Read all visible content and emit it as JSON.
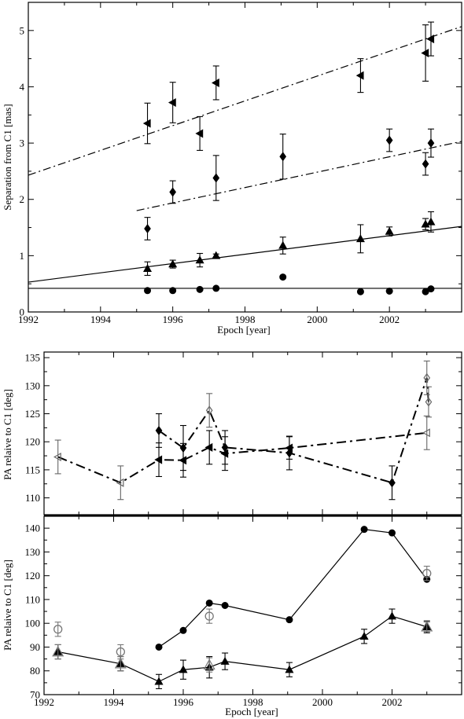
{
  "chart_data": [
    {
      "type": "scatter",
      "xlabel": "Epoch [year]",
      "ylabel": "Separation from C1 [mas]",
      "xlim": [
        1992,
        2004
      ],
      "ylim": [
        0,
        5.5
      ],
      "xticks": [
        "1992",
        "1994",
        "1996",
        "1998",
        "2000",
        "2002"
      ],
      "yticks": [
        "0",
        "1",
        "2",
        "3",
        "4",
        "5"
      ],
      "series": [
        {
          "marker": "triangle-left",
          "points": [
            {
              "x": 1995.3,
              "y": 3.35,
              "err": 0.36
            },
            {
              "x": 1996.0,
              "y": 3.72,
              "err": 0.36
            },
            {
              "x": 1996.75,
              "y": 3.17,
              "err": 0.3
            },
            {
              "x": 1997.2,
              "y": 4.07,
              "err": 0.3
            },
            {
              "x": 2001.2,
              "y": 4.2,
              "err": 0.3
            },
            {
              "x": 2003.0,
              "y": 4.6,
              "err": 0.5
            },
            {
              "x": 2003.15,
              "y": 4.85,
              "err": 0.3
            }
          ],
          "fit": {
            "style": "dash-dot",
            "x": [
              1992,
              2004
            ],
            "y": [
              2.43,
              5.07
            ]
          }
        },
        {
          "marker": "diamond",
          "points": [
            {
              "x": 1995.3,
              "y": 1.48,
              "err": 0.2
            },
            {
              "x": 1996.0,
              "y": 2.13,
              "err": 0.2
            },
            {
              "x": 1997.2,
              "y": 2.38,
              "err": 0.4
            },
            {
              "x": 1999.05,
              "y": 2.76,
              "err": 0.4
            },
            {
              "x": 2002.0,
              "y": 3.05,
              "err": 0.2
            },
            {
              "x": 2003.0,
              "y": 2.63,
              "err": 0.2
            },
            {
              "x": 2003.15,
              "y": 3.0,
              "err": 0.25
            }
          ],
          "fit": {
            "style": "dash-dot",
            "x": [
              1995,
              2004
            ],
            "y": [
              1.8,
              3.03
            ]
          }
        },
        {
          "marker": "triangle-up",
          "points": [
            {
              "x": 1995.3,
              "y": 0.77,
              "err": 0.12
            },
            {
              "x": 1996.0,
              "y": 0.85,
              "err": 0.07
            },
            {
              "x": 1996.75,
              "y": 0.92,
              "err": 0.12
            },
            {
              "x": 1997.2,
              "y": 1.0,
              "err": 0.03
            },
            {
              "x": 1999.05,
              "y": 1.18,
              "err": 0.15
            },
            {
              "x": 2001.2,
              "y": 1.3,
              "err": 0.25
            },
            {
              "x": 2002.0,
              "y": 1.43,
              "err": 0.08
            },
            {
              "x": 2003.0,
              "y": 1.56,
              "err": 0.1
            },
            {
              "x": 2003.15,
              "y": 1.6,
              "err": 0.18
            }
          ],
          "fit": {
            "style": "solid",
            "x": [
              1992,
              2004
            ],
            "y": [
              0.53,
              1.52
            ]
          }
        },
        {
          "marker": "circle",
          "points": [
            {
              "x": 1995.3,
              "y": 0.38
            },
            {
              "x": 1996.0,
              "y": 0.38
            },
            {
              "x": 1996.75,
              "y": 0.4
            },
            {
              "x": 1997.2,
              "y": 0.42
            },
            {
              "x": 1999.05,
              "y": 0.62
            },
            {
              "x": 2001.2,
              "y": 0.36
            },
            {
              "x": 2002.0,
              "y": 0.37
            },
            {
              "x": 2003.0,
              "y": 0.36
            },
            {
              "x": 2003.15,
              "y": 0.41
            }
          ],
          "fit": {
            "style": "solid",
            "x": [
              1992,
              2004
            ],
            "y": [
              0.42,
              0.42
            ]
          }
        }
      ]
    },
    {
      "type": "line",
      "ylabel": "PA relaive to C1 [deg]",
      "xlim": [
        1992,
        2004
      ],
      "ylim": [
        107,
        136
      ],
      "yticks": [
        "110",
        "115",
        "120",
        "125",
        "130",
        "135"
      ],
      "series": [
        {
          "marker": "diamond",
          "line": "dash-dot",
          "points": [
            {
              "x": 1995.3,
              "y": 122.0,
              "err": 3.0,
              "open": false
            },
            {
              "x": 1996.0,
              "y": 118.9,
              "err": 4.0,
              "open": false
            },
            {
              "x": 1996.75,
              "y": 125.6,
              "err": 3.0,
              "open": true
            },
            {
              "x": 1997.2,
              "y": 119.0,
              "err": 3.0,
              "open": false
            },
            {
              "x": 1999.05,
              "y": 118.0,
              "err": 3.0,
              "open": false
            },
            {
              "x": 2002.0,
              "y": 112.7,
              "err": 3.0,
              "open": false
            },
            {
              "x": 2003.0,
              "y": 131.4,
              "err": 3.0,
              "open": true
            },
            {
              "x": 2003.05,
              "y": 127.1,
              "err": 2.7,
              "open": true
            }
          ]
        },
        {
          "marker": "triangle-left",
          "line": "dash-dot",
          "points": [
            {
              "x": 1992.4,
              "y": 117.3,
              "err": 3.0,
              "open": true
            },
            {
              "x": 1994.2,
              "y": 112.7,
              "err": 3.0,
              "open": true
            },
            {
              "x": 1995.3,
              "y": 116.8,
              "err": 3.0,
              "open": false
            },
            {
              "x": 1996.0,
              "y": 116.7,
              "err": 3.0,
              "open": false
            },
            {
              "x": 1996.75,
              "y": 119.0,
              "err": 3.0,
              "open": false
            },
            {
              "x": 1997.2,
              "y": 117.9,
              "err": 3.0,
              "open": false
            },
            {
              "x": 1999.05,
              "y": 118.9,
              "err": 2.0,
              "open": false
            },
            {
              "x": 2003.0,
              "y": 121.6,
              "err": 3.0,
              "open": true
            }
          ]
        }
      ]
    },
    {
      "type": "line",
      "xlabel": "Epoch [year]",
      "ylabel": "PA relaive to C1 [deg]",
      "xlim": [
        1992,
        2004
      ],
      "ylim": [
        70,
        145
      ],
      "xticks": [
        "1992",
        "1994",
        "1996",
        "1998",
        "2000",
        "2002"
      ],
      "yticks": [
        "70",
        "80",
        "90",
        "100",
        "110",
        "120",
        "130",
        "140"
      ],
      "series": [
        {
          "marker": "circle",
          "line": "solid",
          "points": [
            {
              "x": 1995.3,
              "y": 90.0
            },
            {
              "x": 1996.0,
              "y": 97.0
            },
            {
              "x": 1996.75,
              "y": 108.5
            },
            {
              "x": 1997.2,
              "y": 107.5
            },
            {
              "x": 1999.05,
              "y": 101.5
            },
            {
              "x": 2001.2,
              "y": 139.5
            },
            {
              "x": 2002.0,
              "y": 138.0
            },
            {
              "x": 2003.0,
              "y": 118.5
            }
          ],
          "open_points": [
            {
              "x": 1992.4,
              "y": 97.5,
              "err": 3.0
            },
            {
              "x": 1994.2,
              "y": 88.0,
              "err": 3.0
            },
            {
              "x": 1996.75,
              "y": 103.0,
              "err": 3.0
            },
            {
              "x": 2003.0,
              "y": 121.0,
              "err": 3.0
            }
          ]
        },
        {
          "marker": "triangle-up",
          "line": "solid",
          "points": [
            {
              "x": 1992.4,
              "y": 88.0,
              "err": 3.0
            },
            {
              "x": 1994.2,
              "y": 83.0,
              "err": 3.0
            },
            {
              "x": 1995.3,
              "y": 75.5,
              "err": 3.0
            },
            {
              "x": 1996.0,
              "y": 80.5,
              "err": 4.0
            },
            {
              "x": 1996.75,
              "y": 81.5,
              "err": 4.5
            },
            {
              "x": 1997.2,
              "y": 84.0,
              "err": 3.5
            },
            {
              "x": 1999.05,
              "y": 80.5,
              "err": 3.0
            },
            {
              "x": 2001.2,
              "y": 94.5,
              "err": 3.0
            },
            {
              "x": 2002.0,
              "y": 103.0,
              "err": 3.0
            },
            {
              "x": 2003.0,
              "y": 98.5,
              "err": 2.5
            }
          ],
          "open_points": [
            {
              "x": 1992.4,
              "y": 88.0,
              "err": 3.0
            },
            {
              "x": 1994.2,
              "y": 83.0,
              "err": 3.0
            },
            {
              "x": 1996.75,
              "y": 82.5,
              "err": 3.0
            },
            {
              "x": 2003.0,
              "y": 98.5,
              "err": 2.0
            }
          ]
        }
      ]
    }
  ]
}
